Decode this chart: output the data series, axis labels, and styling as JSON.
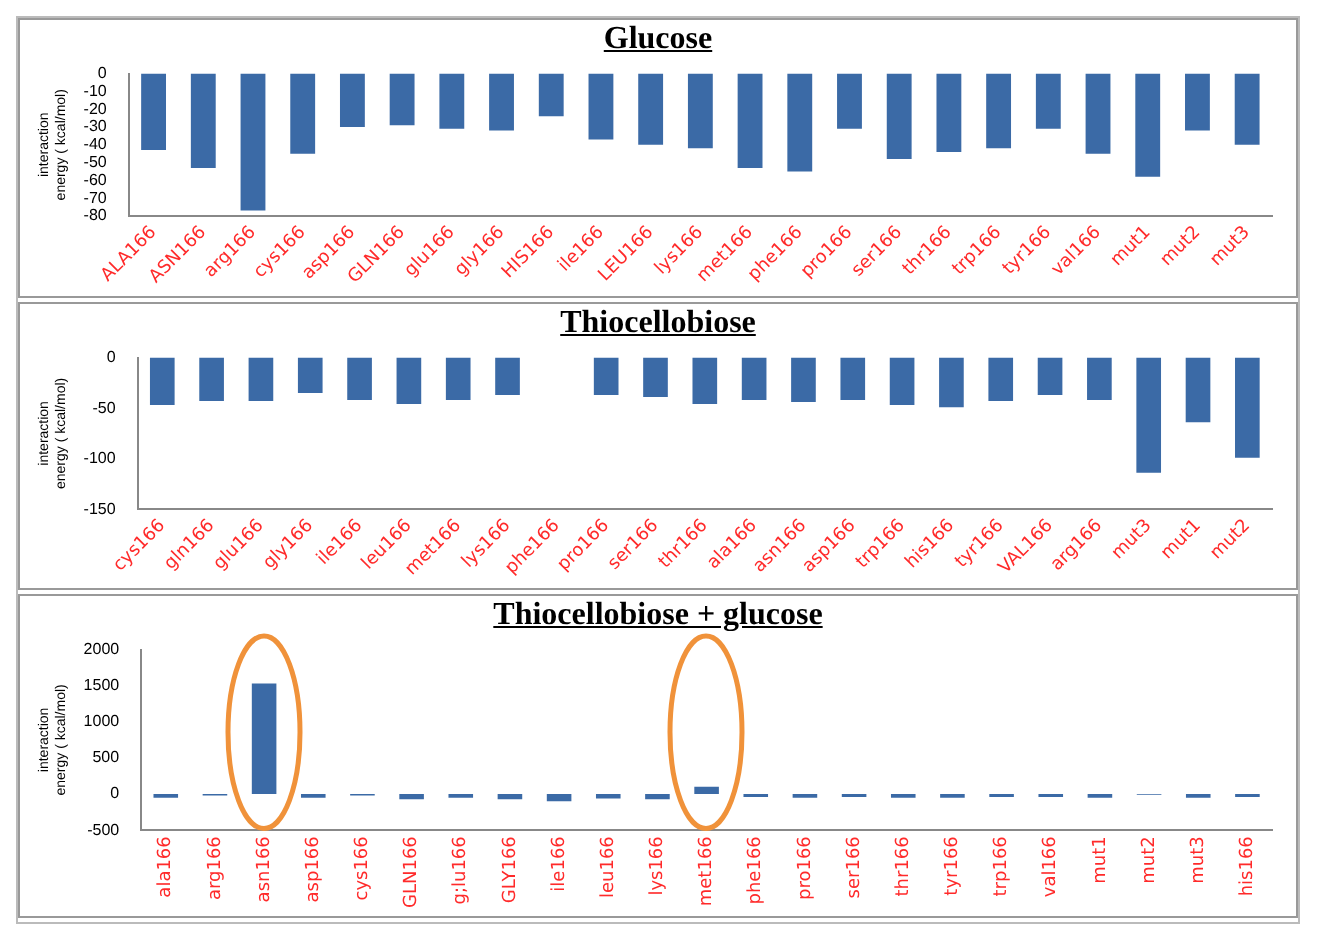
{
  "chart_data": [
    {
      "type": "bar",
      "title": "Glucose",
      "ylabel": "interaction energy ( kcal/mol)",
      "categories": [
        "ALA166",
        "ASN166",
        "arg166",
        "cys166",
        "asp166",
        "GLN166",
        "glu166",
        "gly166",
        "HIS166",
        "ile166",
        "LEU166",
        "lys166",
        "met166",
        "phe166",
        "pro166",
        "ser166",
        "thr166",
        "trp166",
        "tyr166",
        "val166",
        "mut1",
        "mut2",
        "mut3"
      ],
      "values": [
        -43,
        -53,
        -77,
        -45,
        -30,
        -29,
        -31,
        -32,
        -24,
        -37,
        -40,
        -42,
        -53,
        -55,
        -31,
        -48,
        -44,
        -42,
        -31,
        -45,
        -58,
        -32,
        -40
      ],
      "color": "#3b6aa6",
      "ylim": [
        -80,
        0
      ],
      "yticks": [
        0,
        -10,
        -20,
        -30,
        -40,
        -50,
        -60,
        -70,
        -80
      ],
      "grid": false,
      "legend": false
    },
    {
      "type": "bar",
      "title": "Thiocellobiose",
      "ylabel": "interaction energy ( kcal/mol)",
      "categories": [
        "cys166",
        "gln166",
        "glu166",
        "gly166",
        "ile166",
        "leu166",
        "met166",
        "lys166",
        "phe166",
        "pro166",
        "ser166",
        "thr166",
        "ala166",
        "asn166",
        "asp166",
        "trp166",
        "his166",
        "tyr166",
        "VAL166",
        "arg166",
        "mut3",
        "mut1",
        "mut2"
      ],
      "values": [
        -47,
        -43,
        -43,
        -35,
        -42,
        -46,
        -42,
        -37,
        null,
        -37,
        -39,
        -46,
        -42,
        -44,
        -42,
        -47,
        -49,
        -43,
        -37,
        -42,
        -114,
        -64,
        -99
      ],
      "color": "#3b6aa6",
      "ylim": [
        -150,
        0
      ],
      "yticks": [
        0,
        -50,
        -100,
        -150
      ],
      "grid": false,
      "legend": false
    },
    {
      "type": "bar",
      "title": "Thiocellobiose + glucose",
      "ylabel": "interaction energy ( kcal/mol)",
      "categories": [
        "ala166",
        "arg166",
        "asn166",
        "asp166",
        "cys166",
        "GLN166",
        "g;lu166",
        "GLY166",
        "ile166",
        "leu166",
        "lys166",
        "met166",
        "phe166",
        "pro166",
        "ser166",
        "thr166",
        "tyr166",
        "trp166",
        "val166",
        "mut1",
        "mut2",
        "mut3",
        "his166"
      ],
      "values": [
        -50,
        -20,
        1530,
        -50,
        -20,
        -70,
        -50,
        -70,
        -100,
        -60,
        -70,
        100,
        -40,
        -50,
        -40,
        -50,
        -50,
        -40,
        -40,
        -50,
        -10,
        -50,
        -40
      ],
      "color": "#3b6aa6",
      "ylim": [
        -500,
        2000
      ],
      "yticks": [
        -500,
        0,
        500,
        1000,
        1500,
        2000
      ],
      "grid": false,
      "legend": false
    }
  ]
}
